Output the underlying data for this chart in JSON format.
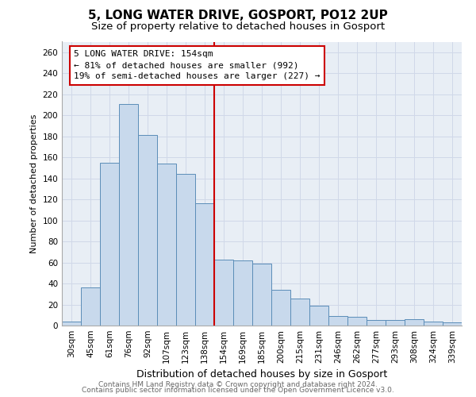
{
  "title": "5, LONG WATER DRIVE, GOSPORT, PO12 2UP",
  "subtitle": "Size of property relative to detached houses in Gosport",
  "xlabel": "Distribution of detached houses by size in Gosport",
  "ylabel": "Number of detached properties",
  "categories": [
    "30sqm",
    "45sqm",
    "61sqm",
    "76sqm",
    "92sqm",
    "107sqm",
    "123sqm",
    "138sqm",
    "154sqm",
    "169sqm",
    "185sqm",
    "200sqm",
    "215sqm",
    "231sqm",
    "246sqm",
    "262sqm",
    "277sqm",
    "293sqm",
    "308sqm",
    "324sqm",
    "339sqm"
  ],
  "values": [
    4,
    36,
    155,
    211,
    181,
    154,
    144,
    116,
    63,
    62,
    59,
    34,
    26,
    19,
    9,
    8,
    5,
    5,
    6,
    4,
    3
  ],
  "bar_color": "#c8d9ec",
  "bar_edge_color": "#5b8db8",
  "vline_x_index": 8,
  "vline_color": "#cc0000",
  "annotation_title": "5 LONG WATER DRIVE: 154sqm",
  "annotation_line1": "← 81% of detached houses are smaller (992)",
  "annotation_line2": "19% of semi-detached houses are larger (227) →",
  "annotation_box_edge": "#cc0000",
  "annotation_box_face": "#ffffff",
  "ylim": [
    0,
    270
  ],
  "yticks": [
    0,
    20,
    40,
    60,
    80,
    100,
    120,
    140,
    160,
    180,
    200,
    220,
    240,
    260
  ],
  "footnote1": "Contains HM Land Registry data © Crown copyright and database right 2024.",
  "footnote2": "Contains public sector information licensed under the Open Government Licence v3.0.",
  "title_fontsize": 11,
  "subtitle_fontsize": 9.5,
  "xlabel_fontsize": 9,
  "ylabel_fontsize": 8,
  "tick_fontsize": 7.5,
  "annotation_fontsize": 8,
  "footnote_fontsize": 6.5,
  "background_color": "#ffffff",
  "grid_color": "#d0d8e8"
}
